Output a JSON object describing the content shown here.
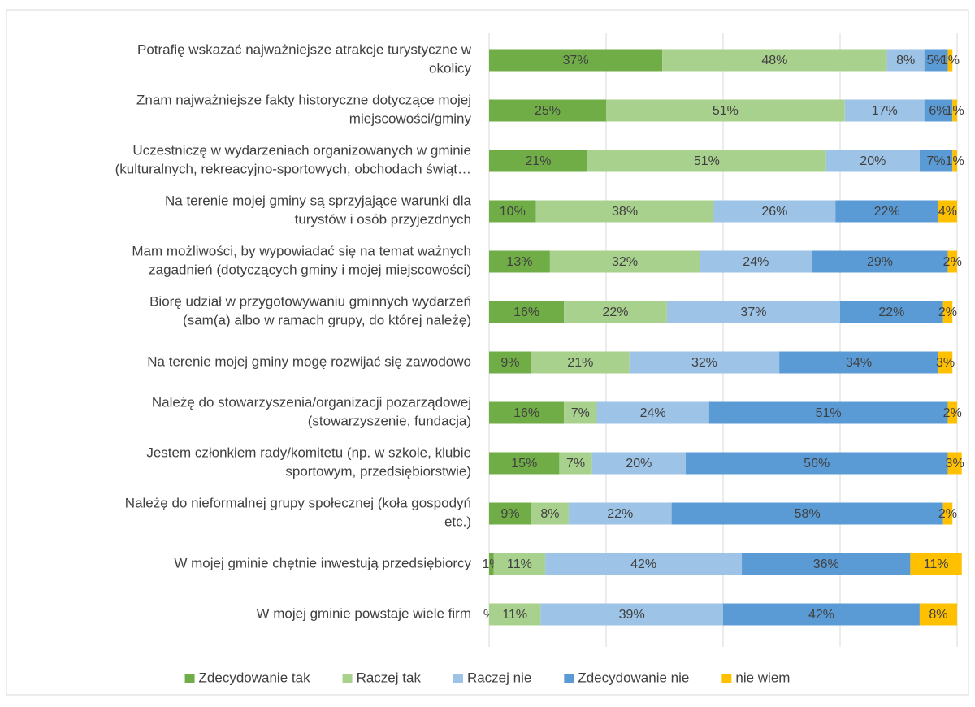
{
  "chart_data": {
    "type": "stacked_bar_100",
    "categories": [
      "Potrafię wskazać najważniejsze atrakcje turystyczne w\nokolicy",
      "Znam najważniejsze fakty historyczne dotyczące mojej\nmiejscowości/gminy",
      "Uczestniczę w wydarzeniach organizowanych w gminie\n(kulturalnych, rekreacyjno-sportowych, obchodach świąt…",
      "Na terenie mojej gminy są sprzyjające warunki dla\nturystów i osób przyjezdnych",
      "Mam możliwości, by wypowiadać się na temat ważnych\nzagadnień (dotyczących gminy i mojej miejscowości)",
      "Biorę udział w przygotowywaniu gminnych wydarzeń\n(sam(a) albo w ramach grupy, do której należę)",
      "Na terenie mojej gminy mogę rozwijać się zawodowo",
      "Należę do stowarzyszenia/organizacji pozarządowej\n(stowarzyszenie, fundacja)",
      "Jestem członkiem rady/komitetu (np. w szkole, klubie\nsportowym, przedsiębiorstwie)",
      "Należę do nieformalnej grupy społecznej (koła gospodyń\netc.)",
      "W mojej gminie chętnie inwestują przedsiębiorcy",
      "W mojej gminie powstaje wiele firm"
    ],
    "series": [
      {
        "name": "Zdecydowanie tak",
        "color": "#70ad47",
        "values": [
          37,
          25,
          21,
          10,
          13,
          16,
          9,
          16,
          15,
          9,
          1,
          0
        ],
        "value_labels": [
          "37%",
          "25%",
          "21%",
          "10%",
          "13%",
          "16%",
          "9%",
          "16%",
          "15%",
          "9%",
          "1%",
          "%"
        ]
      },
      {
        "name": "Raczej tak",
        "color": "#a9d18e",
        "values": [
          48,
          51,
          51,
          38,
          32,
          22,
          21,
          7,
          7,
          8,
          11,
          11
        ],
        "value_labels": [
          "48%",
          "51%",
          "51%",
          "38%",
          "32%",
          "22%",
          "21%",
          "7%",
          "7%",
          "8%",
          "11%",
          "11%"
        ]
      },
      {
        "name": "Raczej nie",
        "color": "#9dc3e6",
        "values": [
          8,
          17,
          20,
          26,
          24,
          37,
          32,
          24,
          20,
          22,
          42,
          39
        ],
        "value_labels": [
          "8%",
          "17%",
          "20%",
          "26%",
          "24%",
          "37%",
          "32%",
          "24%",
          "20%",
          "22%",
          "42%",
          "39%"
        ]
      },
      {
        "name": "Zdecydowanie nie",
        "color": "#5b9bd5",
        "values": [
          5,
          6,
          7,
          22,
          29,
          22,
          34,
          51,
          56,
          58,
          36,
          42
        ],
        "value_labels": [
          "5%",
          "6%",
          "7%",
          "22%",
          "29%",
          "22%",
          "34%",
          "51%",
          "56%",
          "58%",
          "36%",
          "42%"
        ]
      },
      {
        "name": "nie wiem",
        "color": "#ffc000",
        "values": [
          1,
          1,
          1,
          4,
          2,
          2,
          3,
          2,
          3,
          2,
          11,
          8
        ],
        "value_labels": [
          "1%",
          "1%",
          "1%",
          "4%",
          "2%",
          "2%",
          "3%",
          "2%",
          "3%",
          "2%",
          "11%",
          "8%"
        ]
      }
    ],
    "xlim": [
      0,
      100
    ],
    "xticks": [
      0,
      25,
      50,
      75,
      100
    ],
    "grid": true,
    "legend": "bottom"
  }
}
